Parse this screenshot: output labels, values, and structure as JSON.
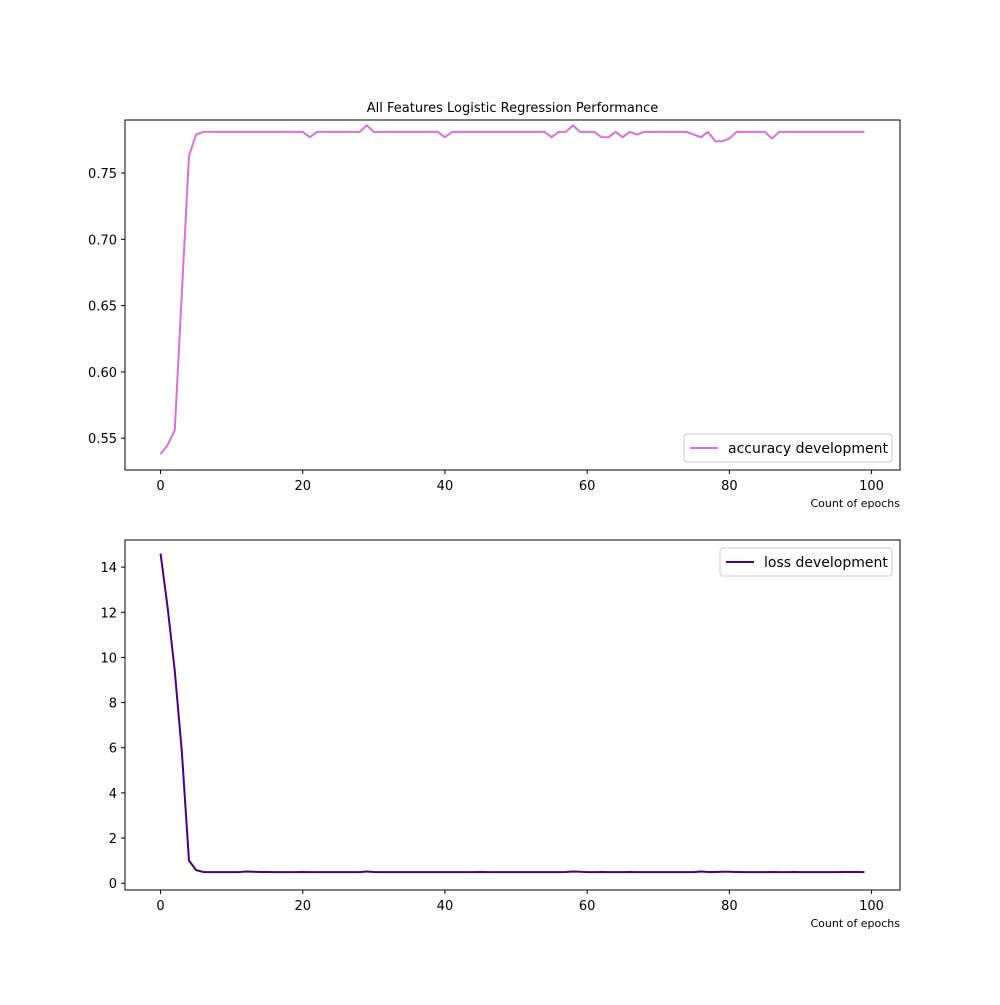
{
  "figure": {
    "title": "All Features Logistic Regression Performance"
  },
  "chart_data": [
    {
      "type": "line",
      "title": "All Features Logistic Regression Performance",
      "xlabel": "Count of epochs",
      "ylabel": "",
      "xlim": [
        -5,
        104
      ],
      "ylim": [
        0.526,
        0.79
      ],
      "xticks": [
        0,
        20,
        40,
        60,
        80,
        100
      ],
      "xtick_labels": [
        "0",
        "20",
        "40",
        "60",
        "80",
        "100"
      ],
      "yticks": [
        0.55,
        0.6,
        0.65,
        0.7,
        0.75
      ],
      "ytick_labels": [
        "0.55",
        "0.60",
        "0.65",
        "0.70",
        "0.75"
      ],
      "grid": false,
      "legend": "lower-right",
      "series": [
        {
          "name": "accuracy development",
          "color": "#da70d6",
          "x": [
            0,
            1,
            2,
            3,
            4,
            5,
            6,
            7,
            8,
            9,
            10,
            11,
            12,
            13,
            14,
            15,
            16,
            17,
            18,
            19,
            20,
            21,
            22,
            23,
            24,
            25,
            26,
            27,
            28,
            29,
            30,
            31,
            32,
            33,
            34,
            35,
            36,
            37,
            38,
            39,
            40,
            41,
            42,
            43,
            44,
            45,
            46,
            47,
            48,
            49,
            50,
            51,
            52,
            53,
            54,
            55,
            56,
            57,
            58,
            59,
            60,
            61,
            62,
            63,
            64,
            65,
            66,
            67,
            68,
            69,
            70,
            71,
            72,
            73,
            74,
            75,
            76,
            77,
            78,
            79,
            80,
            81,
            82,
            83,
            84,
            85,
            86,
            87,
            88,
            89,
            90,
            91,
            92,
            93,
            94,
            95,
            96,
            97,
            98,
            99
          ],
          "values": [
            0.538,
            0.545,
            0.556,
            0.66,
            0.763,
            0.779,
            0.781,
            0.781,
            0.781,
            0.781,
            0.781,
            0.781,
            0.781,
            0.781,
            0.781,
            0.781,
            0.781,
            0.781,
            0.781,
            0.781,
            0.781,
            0.777,
            0.781,
            0.781,
            0.781,
            0.781,
            0.781,
            0.781,
            0.781,
            0.786,
            0.781,
            0.781,
            0.781,
            0.781,
            0.781,
            0.781,
            0.781,
            0.781,
            0.781,
            0.781,
            0.777,
            0.781,
            0.781,
            0.781,
            0.781,
            0.781,
            0.781,
            0.781,
            0.781,
            0.781,
            0.781,
            0.781,
            0.781,
            0.781,
            0.781,
            0.777,
            0.781,
            0.781,
            0.786,
            0.781,
            0.781,
            0.781,
            0.777,
            0.777,
            0.781,
            0.777,
            0.781,
            0.779,
            0.781,
            0.781,
            0.781,
            0.781,
            0.781,
            0.781,
            0.781,
            0.779,
            0.777,
            0.781,
            0.774,
            0.774,
            0.776,
            0.781,
            0.781,
            0.781,
            0.781,
            0.781,
            0.776,
            0.781,
            0.781,
            0.781,
            0.781,
            0.781,
            0.781,
            0.781,
            0.781,
            0.781,
            0.781,
            0.781,
            0.781,
            0.781
          ]
        }
      ]
    },
    {
      "type": "line",
      "title": "",
      "xlabel": "Count of epochs",
      "ylabel": "",
      "xlim": [
        -5,
        104
      ],
      "ylim": [
        -0.3,
        15.2
      ],
      "xticks": [
        0,
        20,
        40,
        60,
        80,
        100
      ],
      "xtick_labels": [
        "0",
        "20",
        "40",
        "60",
        "80",
        "100"
      ],
      "yticks": [
        0,
        2,
        4,
        6,
        8,
        10,
        12,
        14
      ],
      "ytick_labels": [
        "0",
        "2",
        "4",
        "6",
        "8",
        "10",
        "12",
        "14"
      ],
      "grid": false,
      "legend": "upper-right",
      "series": [
        {
          "name": "loss development",
          "color": "#4b0082",
          "x": [
            0,
            1,
            2,
            3,
            4,
            5,
            6,
            7,
            8,
            9,
            10,
            11,
            12,
            13,
            14,
            15,
            16,
            17,
            18,
            19,
            20,
            21,
            22,
            23,
            24,
            25,
            26,
            27,
            28,
            29,
            30,
            31,
            32,
            33,
            34,
            35,
            36,
            37,
            38,
            39,
            40,
            41,
            42,
            43,
            44,
            45,
            46,
            47,
            48,
            49,
            50,
            51,
            52,
            53,
            54,
            55,
            56,
            57,
            58,
            59,
            60,
            61,
            62,
            63,
            64,
            65,
            66,
            67,
            68,
            69,
            70,
            71,
            72,
            73,
            74,
            75,
            76,
            77,
            78,
            79,
            80,
            81,
            82,
            83,
            84,
            85,
            86,
            87,
            88,
            89,
            90,
            91,
            92,
            93,
            94,
            95,
            96,
            97,
            98,
            99
          ],
          "values": [
            14.6,
            12.2,
            9.4,
            5.8,
            1.0,
            0.58,
            0.5,
            0.49,
            0.49,
            0.49,
            0.49,
            0.49,
            0.52,
            0.51,
            0.5,
            0.5,
            0.49,
            0.49,
            0.49,
            0.49,
            0.5,
            0.49,
            0.49,
            0.49,
            0.49,
            0.49,
            0.49,
            0.49,
            0.49,
            0.52,
            0.5,
            0.49,
            0.49,
            0.49,
            0.49,
            0.49,
            0.49,
            0.49,
            0.49,
            0.49,
            0.49,
            0.49,
            0.49,
            0.49,
            0.49,
            0.5,
            0.49,
            0.49,
            0.49,
            0.49,
            0.49,
            0.49,
            0.49,
            0.49,
            0.49,
            0.49,
            0.49,
            0.5,
            0.52,
            0.51,
            0.49,
            0.49,
            0.5,
            0.49,
            0.49,
            0.49,
            0.5,
            0.49,
            0.49,
            0.49,
            0.49,
            0.49,
            0.49,
            0.49,
            0.49,
            0.49,
            0.52,
            0.5,
            0.5,
            0.51,
            0.51,
            0.5,
            0.49,
            0.49,
            0.49,
            0.49,
            0.5,
            0.49,
            0.49,
            0.5,
            0.49,
            0.49,
            0.49,
            0.49,
            0.49,
            0.49,
            0.5,
            0.5,
            0.5,
            0.49
          ]
        }
      ]
    }
  ]
}
